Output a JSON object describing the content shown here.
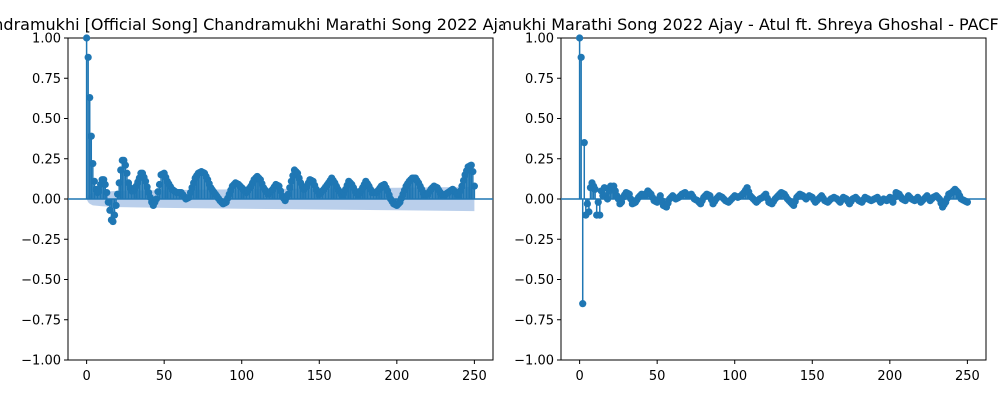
{
  "chart_data": [
    {
      "type": "scatter",
      "style": "stem",
      "title": "Pulkit Samrat Shallu  Chandramukhi [Official Song]  Chandramukhi  Marathi Song 2022  Ajay - Atul ft. Shreya Ghoshal - ACF",
      "xlim": [
        -12,
        262
      ],
      "ylim": [
        -1.0,
        1.0
      ],
      "xticks": [
        "0",
        "50",
        "100",
        "150",
        "200",
        "250"
      ],
      "yticks": [
        "−1.00",
        "−0.75",
        "−0.50",
        "−0.25",
        "0.00",
        "0.25",
        "0.50",
        "0.75",
        "1.00"
      ],
      "confidence_band": [
        [
          0,
          0
        ],
        [
          1,
          -0.02
        ],
        [
          2,
          -0.03
        ],
        [
          4,
          -0.04
        ],
        [
          10,
          -0.045
        ],
        [
          20,
          -0.05
        ],
        [
          50,
          -0.055
        ],
        [
          100,
          -0.06
        ],
        [
          150,
          -0.065
        ],
        [
          200,
          -0.07
        ],
        [
          250,
          -0.075
        ]
      ],
      "profile": [
        [
          0,
          1.0
        ],
        [
          1,
          0.88
        ],
        [
          2,
          0.63
        ],
        [
          3,
          0.39
        ],
        [
          4,
          0.22
        ],
        [
          5,
          0.11
        ],
        [
          6,
          0.06
        ],
        [
          7,
          0.04
        ],
        [
          8,
          0.05
        ],
        [
          9,
          0.09
        ],
        [
          10,
          0.12
        ],
        [
          11,
          0.12
        ],
        [
          12,
          0.09
        ],
        [
          13,
          0.04
        ],
        [
          14,
          -0.02
        ],
        [
          15,
          -0.07
        ],
        [
          16,
          -0.13
        ],
        [
          17,
          -0.14
        ],
        [
          18,
          -0.1
        ],
        [
          19,
          -0.04
        ],
        [
          20,
          0.03
        ],
        [
          21,
          0.1
        ],
        [
          22,
          0.18
        ],
        [
          23,
          0.24
        ],
        [
          24,
          0.24
        ],
        [
          25,
          0.21
        ],
        [
          26,
          0.16
        ],
        [
          27,
          0.1
        ],
        [
          28,
          0.07
        ],
        [
          29,
          0.05
        ],
        [
          30,
          0.05
        ],
        [
          32,
          0.08
        ],
        [
          34,
          0.13
        ],
        [
          35,
          0.16
        ],
        [
          36,
          0.16
        ],
        [
          38,
          0.11
        ],
        [
          40,
          0.04
        ],
        [
          42,
          -0.02
        ],
        [
          43,
          -0.04
        ],
        [
          45,
          0.0
        ],
        [
          47,
          0.09
        ],
        [
          48,
          0.15
        ],
        [
          50,
          0.16
        ],
        [
          52,
          0.11
        ],
        [
          55,
          0.06
        ],
        [
          58,
          0.04
        ],
        [
          61,
          0.04
        ],
        [
          64,
          0.0
        ],
        [
          66,
          0.01
        ],
        [
          68,
          0.07
        ],
        [
          70,
          0.13
        ],
        [
          72,
          0.16
        ],
        [
          74,
          0.17
        ],
        [
          76,
          0.16
        ],
        [
          78,
          0.12
        ],
        [
          80,
          0.07
        ],
        [
          83,
          0.03
        ],
        [
          86,
          -0.01
        ],
        [
          88,
          -0.03
        ],
        [
          90,
          -0.02
        ],
        [
          92,
          0.03
        ],
        [
          94,
          0.08
        ],
        [
          96,
          0.1
        ],
        [
          98,
          0.09
        ],
        [
          100,
          0.07
        ],
        [
          103,
          0.04
        ],
        [
          106,
          0.08
        ],
        [
          108,
          0.12
        ],
        [
          110,
          0.14
        ],
        [
          112,
          0.12
        ],
        [
          114,
          0.07
        ],
        [
          117,
          0.03
        ],
        [
          120,
          0.06
        ],
        [
          122,
          0.09
        ],
        [
          124,
          0.08
        ],
        [
          126,
          0.02
        ],
        [
          128,
          -0.01
        ],
        [
          130,
          0.03
        ],
        [
          132,
          0.11
        ],
        [
          134,
          0.18
        ],
        [
          136,
          0.16
        ],
        [
          138,
          0.1
        ],
        [
          140,
          0.06
        ],
        [
          142,
          0.08
        ],
        [
          144,
          0.12
        ],
        [
          146,
          0.11
        ],
        [
          148,
          0.06
        ],
        [
          150,
          0.03
        ],
        [
          153,
          0.06
        ],
        [
          156,
          0.1
        ],
        [
          158,
          0.13
        ],
        [
          160,
          0.1
        ],
        [
          162,
          0.06
        ],
        [
          165,
          0.02
        ],
        [
          167,
          0.06
        ],
        [
          169,
          0.11
        ],
        [
          171,
          0.09
        ],
        [
          173,
          0.05
        ],
        [
          175,
          0.02
        ],
        [
          178,
          0.07
        ],
        [
          180,
          0.11
        ],
        [
          182,
          0.08
        ],
        [
          184,
          0.04
        ],
        [
          187,
          0.04
        ],
        [
          190,
          0.08
        ],
        [
          192,
          0.09
        ],
        [
          194,
          0.05
        ],
        [
          196,
          0.0
        ],
        [
          198,
          -0.03
        ],
        [
          200,
          -0.04
        ],
        [
          202,
          -0.02
        ],
        [
          204,
          0.03
        ],
        [
          206,
          0.08
        ],
        [
          208,
          0.11
        ],
        [
          210,
          0.13
        ],
        [
          212,
          0.13
        ],
        [
          214,
          0.1
        ],
        [
          216,
          0.06
        ],
        [
          218,
          0.02
        ],
        [
          220,
          0.03
        ],
        [
          222,
          0.06
        ],
        [
          224,
          0.08
        ],
        [
          226,
          0.07
        ],
        [
          228,
          0.04
        ],
        [
          230,
          0.02
        ],
        [
          233,
          0.04
        ],
        [
          236,
          0.06
        ],
        [
          238,
          0.04
        ],
        [
          240,
          0.02
        ],
        [
          242,
          0.08
        ],
        [
          244,
          0.15
        ],
        [
          246,
          0.2
        ],
        [
          248,
          0.21
        ],
        [
          249,
          0.17
        ],
        [
          250,
          0.08
        ]
      ]
    },
    {
      "type": "scatter",
      "style": "stem",
      "title": "Pulkit Samrat Shallu  Chandramukhi [Official Song]  Chandramukhi  Marathi Song 2022  Ajay - Atul ft. Shreya Ghoshal - PACF",
      "xlim": [
        -12,
        262
      ],
      "ylim": [
        -1.0,
        1.0
      ],
      "xticks": [
        "0",
        "50",
        "100",
        "150",
        "200",
        "250"
      ],
      "yticks": [
        "−1.00",
        "−0.75",
        "−0.50",
        "−0.25",
        "0.00",
        "0.25",
        "0.50",
        "0.75",
        "1.00"
      ],
      "profile": [
        [
          0,
          1.0
        ],
        [
          1,
          0.88
        ],
        [
          2,
          -0.65
        ],
        [
          3,
          0.35
        ],
        [
          4,
          -0.1
        ],
        [
          5,
          -0.03
        ],
        [
          6,
          -0.08
        ],
        [
          7,
          0.07
        ],
        [
          8,
          0.1
        ],
        [
          9,
          0.08
        ],
        [
          10,
          0.06
        ],
        [
          11,
          -0.1
        ],
        [
          12,
          -0.02
        ],
        [
          13,
          -0.1
        ],
        [
          14,
          0.05
        ],
        [
          15,
          0.02
        ],
        [
          16,
          0.07
        ],
        [
          17,
          0.02
        ],
        [
          18,
          0.0
        ],
        [
          19,
          0.05
        ],
        [
          20,
          0.08
        ],
        [
          21,
          0.07
        ],
        [
          22,
          0.08
        ],
        [
          23,
          0.05
        ],
        [
          24,
          0.02
        ],
        [
          25,
          0.0
        ],
        [
          26,
          -0.03
        ],
        [
          27,
          -0.02
        ],
        [
          28,
          0.01
        ],
        [
          30,
          0.04
        ],
        [
          32,
          0.03
        ],
        [
          33,
          0.0
        ],
        [
          34,
          -0.03
        ],
        [
          36,
          -0.02
        ],
        [
          38,
          0.01
        ],
        [
          40,
          0.03
        ],
        [
          42,
          0.02
        ],
        [
          44,
          0.05
        ],
        [
          46,
          0.03
        ],
        [
          48,
          -0.01
        ],
        [
          50,
          -0.02
        ],
        [
          52,
          0.02
        ],
        [
          54,
          -0.04
        ],
        [
          56,
          -0.05
        ],
        [
          58,
          0.0
        ],
        [
          60,
          0.02
        ],
        [
          62,
          0.0
        ],
        [
          64,
          0.01
        ],
        [
          66,
          0.03
        ],
        [
          68,
          0.04
        ],
        [
          70,
          0.02
        ],
        [
          72,
          0.03
        ],
        [
          74,
          0.0
        ],
        [
          76,
          -0.01
        ],
        [
          78,
          -0.03
        ],
        [
          80,
          0.01
        ],
        [
          82,
          0.03
        ],
        [
          84,
          0.02
        ],
        [
          86,
          -0.03
        ],
        [
          88,
          0.0
        ],
        [
          90,
          0.02
        ],
        [
          92,
          0.01
        ],
        [
          94,
          -0.01
        ],
        [
          96,
          -0.02
        ],
        [
          98,
          0.0
        ],
        [
          100,
          0.02
        ],
        [
          102,
          0.01
        ],
        [
          104,
          0.02
        ],
        [
          106,
          0.04
        ],
        [
          108,
          0.07
        ],
        [
          110,
          0.02
        ],
        [
          112,
          0.0
        ],
        [
          114,
          -0.02
        ],
        [
          116,
          0.0
        ],
        [
          118,
          0.01
        ],
        [
          120,
          0.03
        ],
        [
          122,
          -0.02
        ],
        [
          124,
          -0.03
        ],
        [
          126,
          0.0
        ],
        [
          128,
          0.02
        ],
        [
          130,
          0.04
        ],
        [
          132,
          0.03
        ],
        [
          134,
          0.0
        ],
        [
          136,
          -0.02
        ],
        [
          138,
          -0.04
        ],
        [
          140,
          0.01
        ],
        [
          142,
          0.03
        ],
        [
          144,
          0.02
        ],
        [
          146,
          0.0
        ],
        [
          148,
          0.02
        ],
        [
          150,
          0.01
        ],
        [
          152,
          -0.02
        ],
        [
          154,
          0.0
        ],
        [
          156,
          0.02
        ],
        [
          158,
          -0.01
        ],
        [
          160,
          -0.02
        ],
        [
          162,
          0.0
        ],
        [
          164,
          0.01
        ],
        [
          166,
          0.0
        ],
        [
          168,
          -0.02
        ],
        [
          170,
          0.01
        ],
        [
          172,
          0.0
        ],
        [
          174,
          -0.03
        ],
        [
          176,
          0.0
        ],
        [
          178,
          0.01
        ],
        [
          180,
          -0.01
        ],
        [
          182,
          -0.02
        ],
        [
          184,
          0.01
        ],
        [
          186,
          0.0
        ],
        [
          188,
          -0.01
        ],
        [
          190,
          0.0
        ],
        [
          192,
          0.01
        ],
        [
          194,
          -0.02
        ],
        [
          196,
          0.0
        ],
        [
          198,
          -0.01
        ],
        [
          200,
          0.01
        ],
        [
          202,
          -0.02
        ],
        [
          204,
          0.04
        ],
        [
          206,
          0.03
        ],
        [
          208,
          0.0
        ],
        [
          210,
          -0.01
        ],
        [
          212,
          0.02
        ],
        [
          214,
          0.0
        ],
        [
          216,
          -0.01
        ],
        [
          218,
          0.01
        ],
        [
          220,
          -0.02
        ],
        [
          222,
          0.0
        ],
        [
          224,
          0.02
        ],
        [
          226,
          -0.01
        ],
        [
          228,
          0.01
        ],
        [
          230,
          0.02
        ],
        [
          232,
          0.0
        ],
        [
          234,
          -0.05
        ],
        [
          236,
          -0.02
        ],
        [
          238,
          0.03
        ],
        [
          240,
          0.04
        ],
        [
          242,
          0.06
        ],
        [
          244,
          0.04
        ],
        [
          246,
          0.0
        ],
        [
          248,
          -0.01
        ],
        [
          250,
          -0.02
        ]
      ]
    }
  ]
}
